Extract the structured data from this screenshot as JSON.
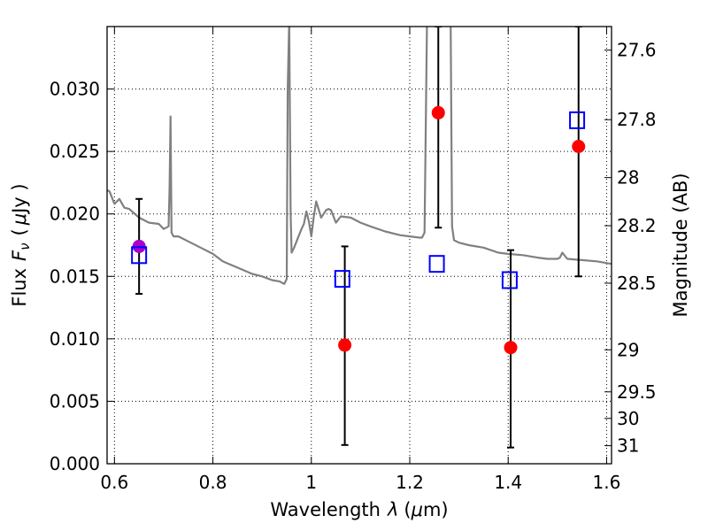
{
  "chart_data": {
    "type": "scatter",
    "title": "",
    "xlabel_text": "Wavelength",
    "xlabel_symbol": "λ",
    "xlabel_unit_open": "(",
    "xlabel_unit_mu": "μ",
    "xlabel_unit_rest": "m)",
    "ylabel_text": "Flux",
    "ylabel_symbol": "F",
    "ylabel_sub": "ν",
    "ylabel_unit_open": "(",
    "ylabel_unit_mu": "μ",
    "ylabel_unit_rest": "Jy )",
    "y2label": "Magnitude (AB)",
    "xlim": [
      0.585,
      1.61
    ],
    "ylim": [
      0.0,
      0.035
    ],
    "grid": true,
    "x_ticks": [
      {
        "value": 0.6,
        "label": "0.6"
      },
      {
        "value": 0.8,
        "label": "0.8"
      },
      {
        "value": 1.0,
        "label": "1"
      },
      {
        "value": 1.2,
        "label": "1.2"
      },
      {
        "value": 1.4,
        "label": "1.4"
      },
      {
        "value": 1.6,
        "label": "1.6"
      }
    ],
    "y_ticks": [
      {
        "value": 0.0,
        "label": "0.000"
      },
      {
        "value": 0.005,
        "label": "0.005"
      },
      {
        "value": 0.01,
        "label": "0.010"
      },
      {
        "value": 0.015,
        "label": "0.015"
      },
      {
        "value": 0.02,
        "label": "0.020"
      },
      {
        "value": 0.025,
        "label": "0.025"
      },
      {
        "value": 0.03,
        "label": "0.030"
      }
    ],
    "y2_ticks": [
      {
        "value": 27.6,
        "label": "27.6"
      },
      {
        "value": 27.8,
        "label": "27.8"
      },
      {
        "value": 28.0,
        "label": "28"
      },
      {
        "value": 28.2,
        "label": "28.2"
      },
      {
        "value": 28.5,
        "label": "28.5"
      },
      {
        "value": 29.0,
        "label": "29"
      },
      {
        "value": 29.5,
        "label": "29.5"
      },
      {
        "value": 30.0,
        "label": "30"
      },
      {
        "value": 31.0,
        "label": "31"
      }
    ],
    "sed_model": {
      "color": "#808080",
      "x": [
        0.585,
        0.59,
        0.6,
        0.61,
        0.62,
        0.63,
        0.65,
        0.67,
        0.69,
        0.7,
        0.71,
        0.712,
        0.714,
        0.716,
        0.72,
        0.73,
        0.75,
        0.78,
        0.8,
        0.82,
        0.85,
        0.88,
        0.9,
        0.92,
        0.935,
        0.945,
        0.95,
        0.952,
        0.955,
        0.958,
        0.96,
        0.965,
        0.97,
        0.975,
        0.98,
        0.985,
        0.99,
        0.995,
        1.0,
        1.005,
        1.01,
        1.02,
        1.03,
        1.035,
        1.04,
        1.05,
        1.06,
        1.08,
        1.1,
        1.12,
        1.15,
        1.18,
        1.2,
        1.22,
        1.225,
        1.23,
        1.235,
        1.24,
        1.245,
        1.255,
        1.26,
        1.265,
        1.27,
        1.275,
        1.28,
        1.283,
        1.286,
        1.29,
        1.3,
        1.32,
        1.35,
        1.38,
        1.4,
        1.43,
        1.46,
        1.48,
        1.5,
        1.505,
        1.51,
        1.52,
        1.55,
        1.58,
        1.61
      ],
      "y": [
        0.0219,
        0.0218,
        0.0208,
        0.0212,
        0.0205,
        0.0204,
        0.0197,
        0.0193,
        0.0192,
        0.0188,
        0.019,
        0.022,
        0.0278,
        0.0185,
        0.0182,
        0.0182,
        0.0178,
        0.0172,
        0.0168,
        0.0162,
        0.0157,
        0.0152,
        0.015,
        0.0147,
        0.0146,
        0.0144,
        0.0148,
        0.03,
        0.0355,
        0.02,
        0.0169,
        0.0173,
        0.0178,
        0.0183,
        0.0188,
        0.0192,
        0.0202,
        0.0194,
        0.0182,
        0.0198,
        0.021,
        0.0197,
        0.0203,
        0.0204,
        0.0203,
        0.0193,
        0.0198,
        0.0197,
        0.0193,
        0.019,
        0.0186,
        0.0183,
        0.0182,
        0.0181,
        0.0181,
        0.0185,
        0.0355,
        0.0355,
        0.0355,
        0.0355,
        0.0355,
        0.0355,
        0.0355,
        0.0355,
        0.0355,
        0.0355,
        0.019,
        0.0179,
        0.0177,
        0.0175,
        0.0173,
        0.0169,
        0.0168,
        0.0167,
        0.0165,
        0.0164,
        0.0164,
        0.0165,
        0.0169,
        0.0164,
        0.0163,
        0.0162,
        0.016
      ]
    },
    "series": [
      {
        "marker": "circle",
        "color": "#ff0000",
        "points": [
          {
            "x": 1.068,
            "y": 0.0095,
            "y_low": 0.0015,
            "y_high": 0.0174
          },
          {
            "x": 1.258,
            "y": 0.0281,
            "y_low": 0.0189,
            "y_high": 0.035
          },
          {
            "x": 1.405,
            "y": 0.0093,
            "y_low": 0.0013,
            "y_high": 0.0171
          },
          {
            "x": 1.543,
            "y": 0.0254,
            "y_low": 0.015,
            "y_high": 0.035
          }
        ]
      },
      {
        "marker": "circle",
        "color": "#aa00cc",
        "points": [
          {
            "x": 0.65,
            "y": 0.0174,
            "y_low": 0.0136,
            "y_high": 0.0212
          }
        ]
      },
      {
        "marker": "square-open",
        "color": "#0000ff",
        "points": [
          {
            "x": 0.65,
            "y": 0.0167
          },
          {
            "x": 1.063,
            "y": 0.0148
          },
          {
            "x": 1.255,
            "y": 0.016
          },
          {
            "x": 1.403,
            "y": 0.0147
          },
          {
            "x": 1.54,
            "y": 0.0275
          }
        ]
      }
    ]
  }
}
